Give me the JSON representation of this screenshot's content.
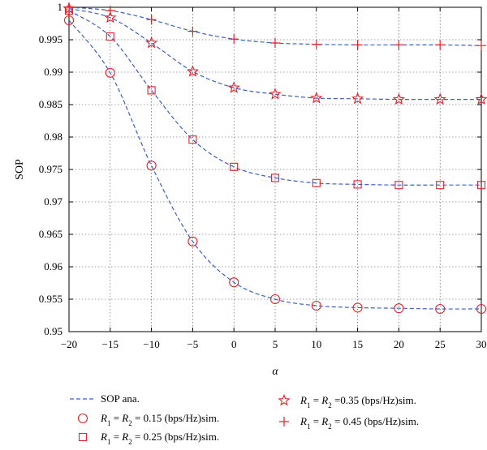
{
  "chart_data": {
    "type": "line",
    "title": "",
    "xlabel": "α",
    "ylabel": "SOP",
    "xlim": [
      -20,
      30
    ],
    "ylim": [
      0.95,
      1.0
    ],
    "x": [
      -20,
      -15,
      -10,
      -5,
      0,
      5,
      10,
      15,
      20,
      25,
      30
    ],
    "x_ticks": [
      "−20",
      "−15",
      "−10",
      "−5",
      "0",
      "5",
      "10",
      "15",
      "20",
      "25",
      "30"
    ],
    "y_ticks": [
      "0.95",
      "0.955",
      "0.96",
      "0.965",
      "0.97",
      "0.975",
      "0.98",
      "0.985",
      "0.99",
      "0.995",
      "1"
    ],
    "y_tick_values": [
      0.95,
      0.955,
      0.96,
      0.965,
      0.97,
      0.975,
      0.98,
      0.985,
      0.99,
      0.995,
      1.0
    ],
    "grid": true,
    "legend_position": "bottom",
    "colors": {
      "analysis": "#3a5fcd",
      "simulation": "#e8212a"
    },
    "analysis_label": "SOP ana.",
    "series": [
      {
        "label_prefix": "R",
        "label_sub1": "1",
        "label_mid": " = R",
        "label_sub2": "2",
        "label_suffix": " = 0.15 (bps/Hz)sim.",
        "marker": "circle",
        "values": [
          0.998,
          0.9899,
          0.9756,
          0.9639,
          0.9576,
          0.955,
          0.954,
          0.9537,
          0.9536,
          0.9535,
          0.9535
        ]
      },
      {
        "label_prefix": "R",
        "label_sub1": "1",
        "label_mid": " = R",
        "label_sub2": "2",
        "label_suffix": " = 0.25 (bps/Hz)sim.",
        "marker": "square",
        "values": [
          0.9995,
          0.9955,
          0.9872,
          0.9796,
          0.9754,
          0.9737,
          0.9729,
          0.9727,
          0.9726,
          0.9726,
          0.9726
        ]
      },
      {
        "label_prefix": "R",
        "label_sub1": "1",
        "label_mid": " = R",
        "label_sub2": "2",
        "label_suffix": " =0.35 (bps/Hz)sim.",
        "marker": "star",
        "values": [
          0.9998,
          0.9984,
          0.9945,
          0.9901,
          0.9876,
          0.9866,
          0.986,
          0.9859,
          0.9858,
          0.9858,
          0.9858
        ]
      },
      {
        "label_prefix": "R",
        "label_sub1": "1",
        "label_mid": " = R",
        "label_sub2": "2",
        "label_suffix": " = 0.45 (bps/Hz)sim.",
        "marker": "plus",
        "values": [
          1.0,
          0.9995,
          0.9981,
          0.9963,
          0.9951,
          0.9945,
          0.9943,
          0.9942,
          0.9942,
          0.9942,
          0.9941
        ]
      }
    ]
  }
}
